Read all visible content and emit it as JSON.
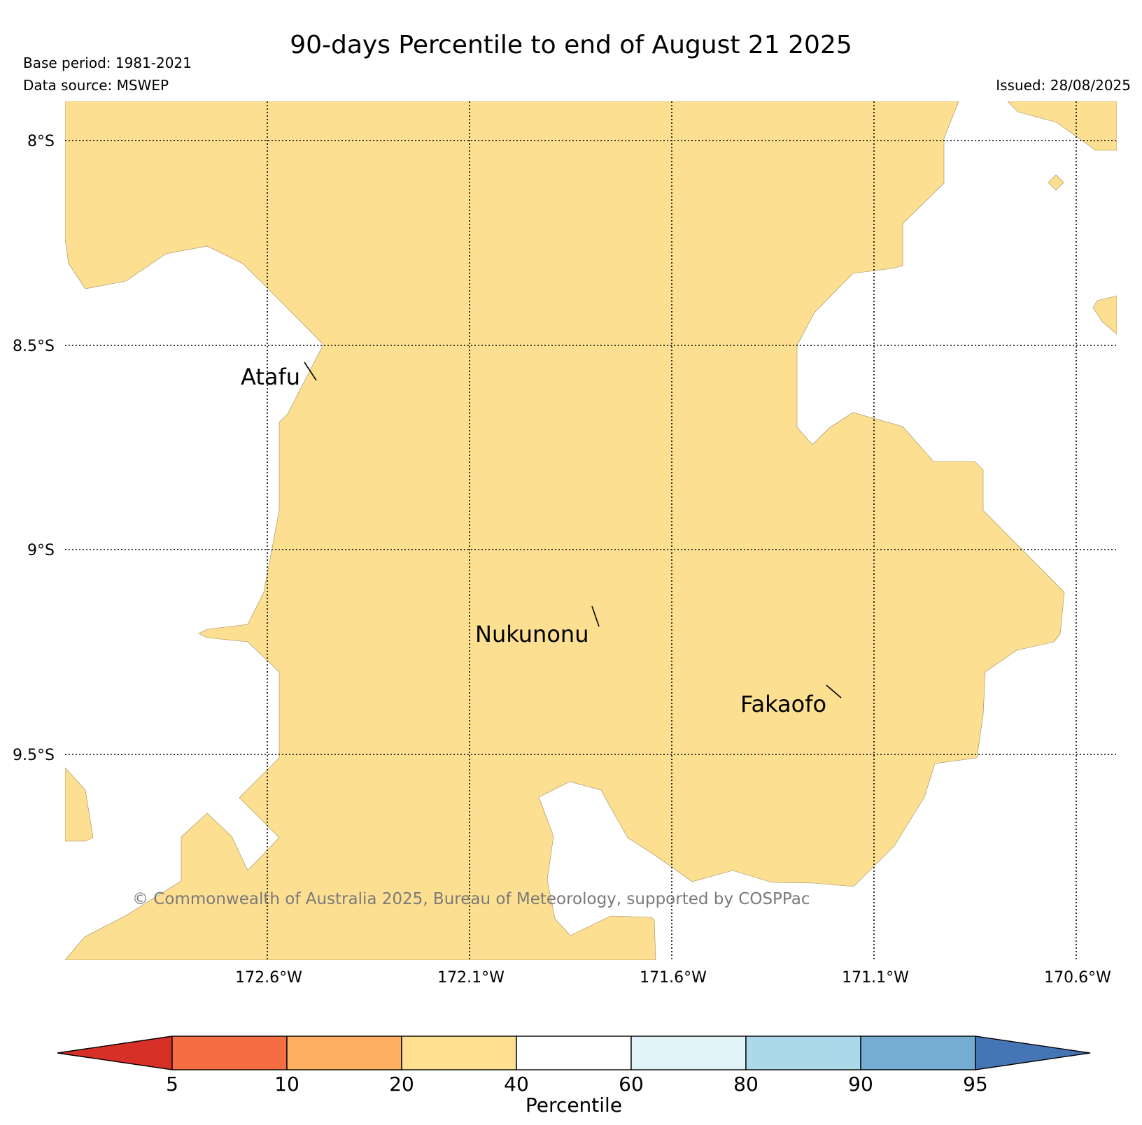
{
  "title": "90-days Percentile to end of August 21 2025",
  "base_period": "Base period: 1981-2021",
  "data_source": "Data source: MSWEP",
  "issued": "Issued: 28/08/2025",
  "map": {
    "lat_labels": [
      "8°S",
      "8.5°S",
      "9°S",
      "9.5°S"
    ],
    "lon_labels": [
      "172.6°W",
      "172.1°W",
      "171.6°W",
      "171.1°W",
      "170.6°W"
    ],
    "places": [
      "Atafu",
      "Nukunonu",
      "Fakaofo"
    ],
    "copyright": "© Commonwealth of Australia 2025, Bureau of Meteorology, supported by COSPPac",
    "fill_color": "#fddf91",
    "fill_category": "20-40"
  },
  "legend": {
    "label": "Percentile",
    "ticks": [
      "5",
      "10",
      "20",
      "40",
      "60",
      "80",
      "90",
      "95"
    ],
    "colors": {
      "below_5": "#d73027",
      "5_10": "#f46d43",
      "10_20": "#fdae61",
      "20_40": "#fee090",
      "40_60": "#ffffff",
      "60_80": "#e0f3f8",
      "80_90": "#abd9e9",
      "90_95": "#74add1",
      "above_95": "#4575b4"
    }
  }
}
